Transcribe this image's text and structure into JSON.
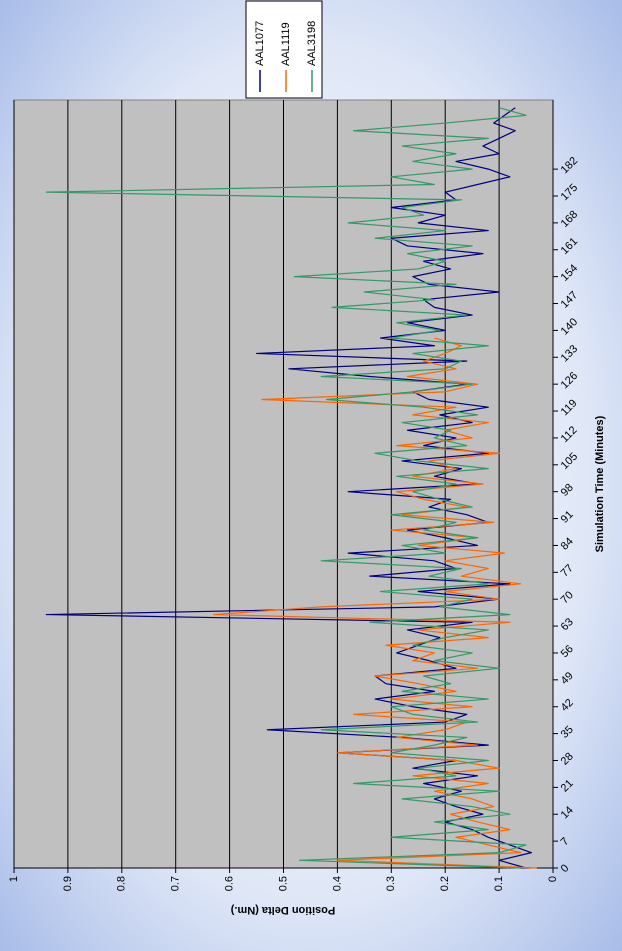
{
  "chart_data": {
    "type": "line",
    "xlabel": "Simulation Time (Minutes)",
    "ylabel": "Position Delta (Nm.)",
    "x": [
      0,
      2,
      4,
      6,
      8,
      10,
      12,
      14,
      16,
      18,
      20,
      22,
      24,
      26,
      28,
      30,
      32,
      34,
      36,
      38,
      40,
      42,
      44,
      46,
      48,
      50,
      52,
      54,
      56,
      58,
      60,
      62,
      64,
      66,
      68,
      70,
      72,
      74,
      76,
      78,
      80,
      82,
      84,
      86,
      88,
      90,
      92,
      94,
      96,
      98,
      100,
      102,
      104,
      106,
      108,
      110,
      112,
      114,
      116,
      118,
      120,
      122,
      124,
      126,
      128,
      130,
      132,
      134,
      136,
      138,
      140,
      142,
      144,
      146,
      148,
      150,
      152,
      154,
      156,
      158,
      160,
      162,
      164,
      166,
      168,
      170,
      172,
      174,
      176,
      178,
      180,
      182,
      184,
      186,
      188,
      190,
      192,
      194,
      196,
      198
    ],
    "xlim": [
      0,
      200
    ],
    "xticks": [
      0,
      7,
      14,
      21,
      28,
      35,
      42,
      49,
      56,
      63,
      70,
      77,
      84,
      91,
      98,
      105,
      112,
      119,
      126,
      133,
      140,
      147,
      154,
      161,
      168,
      175,
      182
    ],
    "ylim": [
      0,
      1
    ],
    "yticks": [
      0,
      0.1,
      0.2,
      0.3,
      0.4,
      0.5,
      0.6,
      0.7,
      0.8,
      0.9,
      1
    ],
    "grid": true,
    "legend": "right",
    "series": [
      {
        "name": "AAL1077",
        "color": "#000080",
        "values": [
          0.05,
          0.1,
          0.04,
          0.08,
          0.12,
          0.15,
          0.2,
          0.13,
          0.18,
          0.22,
          0.17,
          0.24,
          0.14,
          0.26,
          0.18,
          0.4,
          0.12,
          0.28,
          0.53,
          0.2,
          0.16,
          0.26,
          0.33,
          0.22,
          0.31,
          0.33,
          0.18,
          0.23,
          0.29,
          0.25,
          0.21,
          0.27,
          0.15,
          0.94,
          0.22,
          0.1,
          0.25,
          0.08,
          0.34,
          0.18,
          0.22,
          0.38,
          0.14,
          0.2,
          0.27,
          0.12,
          0.16,
          0.23,
          0.19,
          0.38,
          0.14,
          0.22,
          0.17,
          0.28,
          0.12,
          0.24,
          0.18,
          0.27,
          0.15,
          0.21,
          0.12,
          0.23,
          0.26,
          0.16,
          0.34,
          0.49,
          0.16,
          0.55,
          0.22,
          0.32,
          0.2,
          0.27,
          0.15,
          0.22,
          0.24,
          0.1,
          0.23,
          0.26,
          0.19,
          0.24,
          0.13,
          0.27,
          0.3,
          0.12,
          0.25,
          0.2,
          0.3,
          0.18,
          0.2,
          0.14,
          0.08,
          0.12,
          0.18,
          0.1,
          0.13,
          0.1,
          0.07,
          0.11,
          0.09,
          0.07
        ]
      },
      {
        "name": "AAL1119",
        "color": "#ff6600",
        "values": [
          0.03,
          0.4,
          0.06,
          0.12,
          0.18,
          0.08,
          0.14,
          0.19,
          0.11,
          0.15,
          0.22,
          0.12,
          0.26,
          0.1,
          0.18,
          0.4,
          0.14,
          0.29,
          0.2,
          0.16,
          0.37,
          0.15,
          0.3,
          0.18,
          0.25,
          0.33,
          0.14,
          0.26,
          0.22,
          0.31,
          0.12,
          0.25,
          0.08,
          0.63,
          0.43,
          0.1,
          0.2,
          0.06,
          0.17,
          0.12,
          0.2,
          0.09,
          0.25,
          0.14,
          0.3,
          0.11,
          0.28,
          0.16,
          0.24,
          0.29,
          0.13,
          0.26,
          0.18,
          0.23,
          0.1,
          0.29,
          0.15,
          0.2,
          0.12,
          0.26,
          0.18,
          0.54,
          0.2,
          0.14,
          0.27,
          0.18,
          0.24,
          0.2,
          0.17,
          0.22,
          null,
          null,
          null,
          null,
          null,
          null,
          null,
          null,
          null,
          null,
          null,
          null,
          null,
          null,
          null,
          null,
          null,
          null,
          null,
          null,
          null,
          null,
          null,
          null,
          null,
          null,
          null,
          null,
          null,
          null
        ]
      },
      {
        "name": "AAL3198",
        "color": "#339966",
        "values": [
          0.06,
          0.47,
          0.1,
          0.05,
          0.3,
          0.12,
          0.22,
          0.08,
          0.15,
          0.28,
          0.1,
          0.37,
          0.18,
          0.25,
          0.12,
          0.3,
          0.22,
          0.16,
          0.43,
          0.14,
          0.26,
          0.3,
          0.12,
          0.28,
          0.19,
          0.24,
          0.1,
          0.22,
          0.15,
          0.26,
          0.2,
          0.12,
          0.34,
          0.08,
          0.21,
          0.15,
          0.32,
          0.12,
          0.23,
          0.17,
          0.43,
          0.2,
          0.28,
          0.14,
          0.24,
          0.18,
          0.3,
          0.15,
          0.21,
          0.26,
          0.18,
          0.29,
          0.12,
          0.25,
          0.33,
          0.16,
          0.22,
          0.19,
          0.28,
          0.14,
          0.24,
          0.42,
          0.26,
          0.15,
          0.43,
          0.2,
          0.17,
          0.26,
          0.12,
          0.3,
          0.21,
          0.29,
          0.16,
          0.41,
          0.22,
          0.35,
          0.18,
          0.48,
          0.25,
          0.2,
          0.27,
          0.15,
          0.33,
          0.2,
          0.38,
          0.24,
          0.28,
          0.17,
          0.94,
          0.22,
          0.3,
          0.15,
          0.26,
          0.18,
          0.28,
          0.12,
          0.37,
          0.2,
          0.05,
          0.1
        ]
      }
    ]
  }
}
